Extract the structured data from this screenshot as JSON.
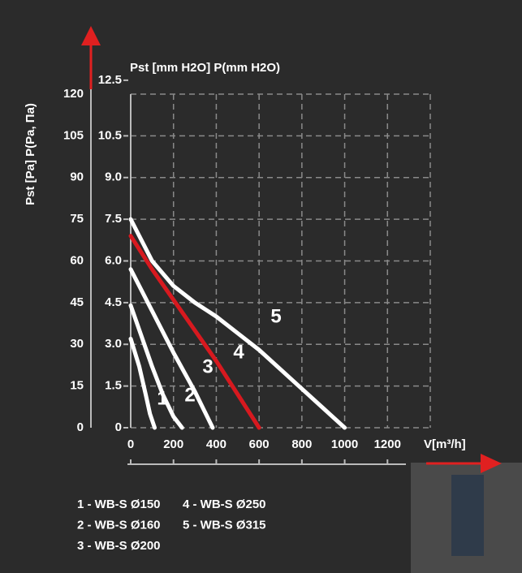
{
  "chart_data": {
    "type": "line",
    "y_label": "Pst [Pa] P(Pa, Па)",
    "y2_label": "Pst [mm H2O] P(mm H2O)",
    "x_label": "V[m³/h]",
    "xlim": [
      0,
      1400
    ],
    "xticks": [
      0,
      200,
      400,
      600,
      800,
      1000,
      1200
    ],
    "ylim": [
      0,
      120
    ],
    "yticks": [
      0,
      15,
      30,
      45,
      60,
      75,
      90,
      105,
      120
    ],
    "y2lim": [
      0,
      12
    ],
    "y2ticks": [
      0,
      {
        "value": 1.5,
        "label": "1.5"
      },
      {
        "value": 3,
        "label": "3.0"
      },
      {
        "value": 4.5,
        "label": "4.5"
      },
      {
        "value": 6,
        "label": "6.0"
      },
      {
        "value": 7.5,
        "label": "7.5"
      },
      {
        "value": 9,
        "label": "9.0"
      },
      {
        "value": 10.5,
        "label": "10.5"
      },
      {
        "value": 12.5,
        "label": "12.5"
      }
    ],
    "grid": true,
    "series": [
      {
        "name": "1 - WB-S Ø150",
        "label": "1",
        "color": "#ffffff",
        "x": [
          0,
          40,
          70,
          90,
          112
        ],
        "values": [
          32,
          22,
          12,
          5,
          0
        ]
      },
      {
        "name": "2 - WB-S Ø160",
        "label": "2",
        "color": "#ffffff",
        "x": [
          0,
          50,
          100,
          150,
          200,
          240
        ],
        "values": [
          44,
          33,
          22,
          12,
          4,
          0
        ]
      },
      {
        "name": "3 - WB-S Ø200",
        "label": "3",
        "color": "#ffffff",
        "x": [
          0,
          100,
          200,
          300,
          383
        ],
        "values": [
          57,
          42,
          27,
          13,
          0
        ]
      },
      {
        "name": "4 - WB-S Ø250",
        "label": "4",
        "color": "#d7191f",
        "x": [
          0,
          100,
          200,
          300,
          400,
          500,
          600
        ],
        "values": [
          69,
          57,
          46,
          35,
          24,
          12,
          0
        ]
      },
      {
        "name": "5 - WB-S Ø315",
        "label": "5",
        "color": "#ffffff",
        "x": [
          0,
          100,
          200,
          300,
          400,
          500,
          600,
          700,
          800,
          900,
          1000
        ],
        "values": [
          75,
          60,
          51,
          45,
          40,
          34,
          28,
          21,
          14,
          7,
          0
        ]
      }
    ]
  }
}
